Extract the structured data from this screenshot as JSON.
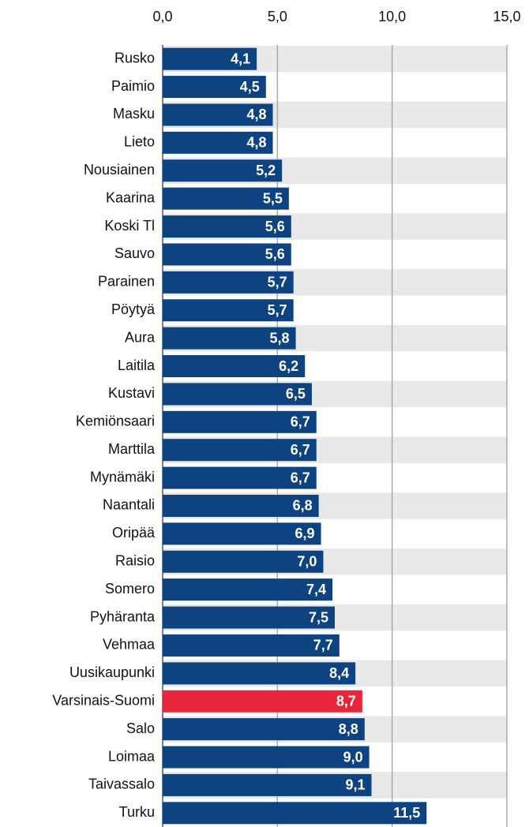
{
  "chart_data": {
    "type": "bar",
    "orientation": "horizontal",
    "categories": [
      "Rusko",
      "Paimio",
      "Masku",
      "Lieto",
      "Nousiainen",
      "Kaarina",
      "Koski Tl",
      "Sauvo",
      "Parainen",
      "Pöytyä",
      "Aura",
      "Laitila",
      "Kustavi",
      "Kemiönsaari",
      "Marttila",
      "Mynämäki",
      "Naantali",
      "Oripää",
      "Raisio",
      "Somero",
      "Pyhäranta",
      "Vehmaa",
      "Uusikaupunki",
      "Varsinais-Suomi",
      "Salo",
      "Loimaa",
      "Taivassalo",
      "Turku"
    ],
    "values": [
      4.1,
      4.5,
      4.8,
      4.8,
      5.2,
      5.5,
      5.6,
      5.6,
      5.7,
      5.7,
      5.8,
      6.2,
      6.5,
      6.7,
      6.7,
      6.7,
      6.8,
      6.9,
      7.0,
      7.4,
      7.5,
      7.7,
      8.4,
      8.7,
      8.8,
      9.0,
      9.1,
      11.5
    ],
    "value_labels": [
      "4,1",
      "4,5",
      "4,8",
      "4,8",
      "5,2",
      "5,5",
      "5,6",
      "5,6",
      "5,7",
      "5,7",
      "5,8",
      "6,2",
      "6,5",
      "6,7",
      "6,7",
      "6,7",
      "6,8",
      "6,9",
      "7,0",
      "7,4",
      "7,5",
      "7,7",
      "8,4",
      "8,7",
      "8,8",
      "9,0",
      "9,1",
      "11,5"
    ],
    "colors": [
      "#0e4382",
      "#0e4382",
      "#0e4382",
      "#0e4382",
      "#0e4382",
      "#0e4382",
      "#0e4382",
      "#0e4382",
      "#0e4382",
      "#0e4382",
      "#0e4382",
      "#0e4382",
      "#0e4382",
      "#0e4382",
      "#0e4382",
      "#0e4382",
      "#0e4382",
      "#0e4382",
      "#0e4382",
      "#0e4382",
      "#0e4382",
      "#0e4382",
      "#0e4382",
      "#e8253b",
      "#0e4382",
      "#0e4382",
      "#0e4382",
      "#0e4382"
    ],
    "xlim": [
      0,
      15
    ],
    "xticks": [
      {
        "value": 0,
        "label": "0,0"
      },
      {
        "value": 5,
        "label": "5,0"
      },
      {
        "value": 10,
        "label": "10,0"
      },
      {
        "value": 15,
        "label": "15,0"
      }
    ],
    "grid": true,
    "banded_rows": true
  }
}
